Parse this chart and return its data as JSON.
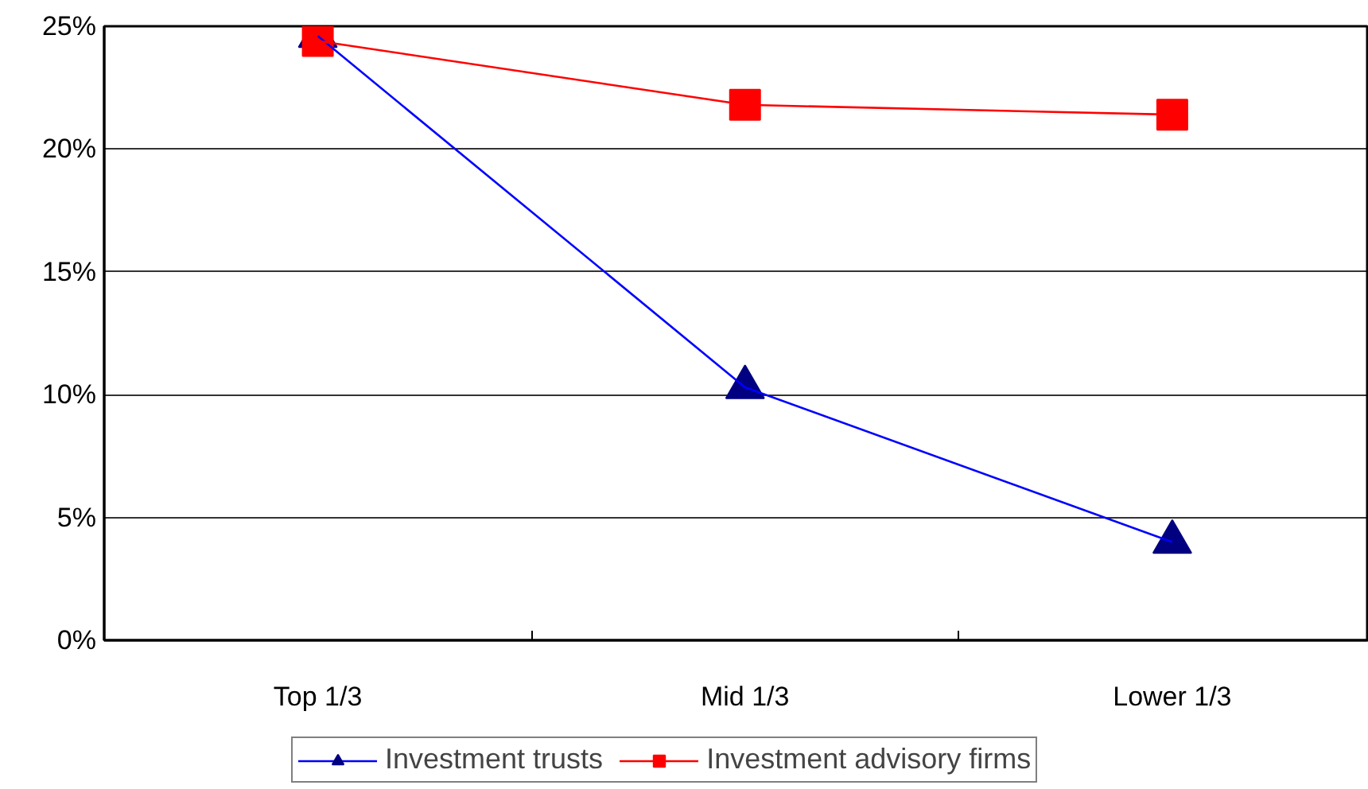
{
  "chart_data": {
    "type": "line",
    "categories": [
      "Top 1/3",
      "Mid 1/3",
      "Lower 1/3"
    ],
    "series": [
      {
        "name": "Investment trusts",
        "color": "#0000ff",
        "marker": "triangle",
        "values": [
          24.6,
          10.3,
          4.0
        ]
      },
      {
        "name": "Investment advisory firms",
        "color": "#ff0000",
        "marker": "square",
        "values": [
          24.4,
          21.8,
          21.4
        ]
      }
    ],
    "ylim": [
      0,
      25
    ],
    "yticks": [
      {
        "value": 0,
        "label": "0%"
      },
      {
        "value": 5,
        "label": "5%"
      },
      {
        "value": 10,
        "label": "10%"
      },
      {
        "value": 15,
        "label": "15%"
      },
      {
        "value": 20,
        "label": "20%"
      },
      {
        "value": 25,
        "label": "25%"
      }
    ],
    "grid": "y",
    "legend": "bottom",
    "line_style": "solid"
  }
}
